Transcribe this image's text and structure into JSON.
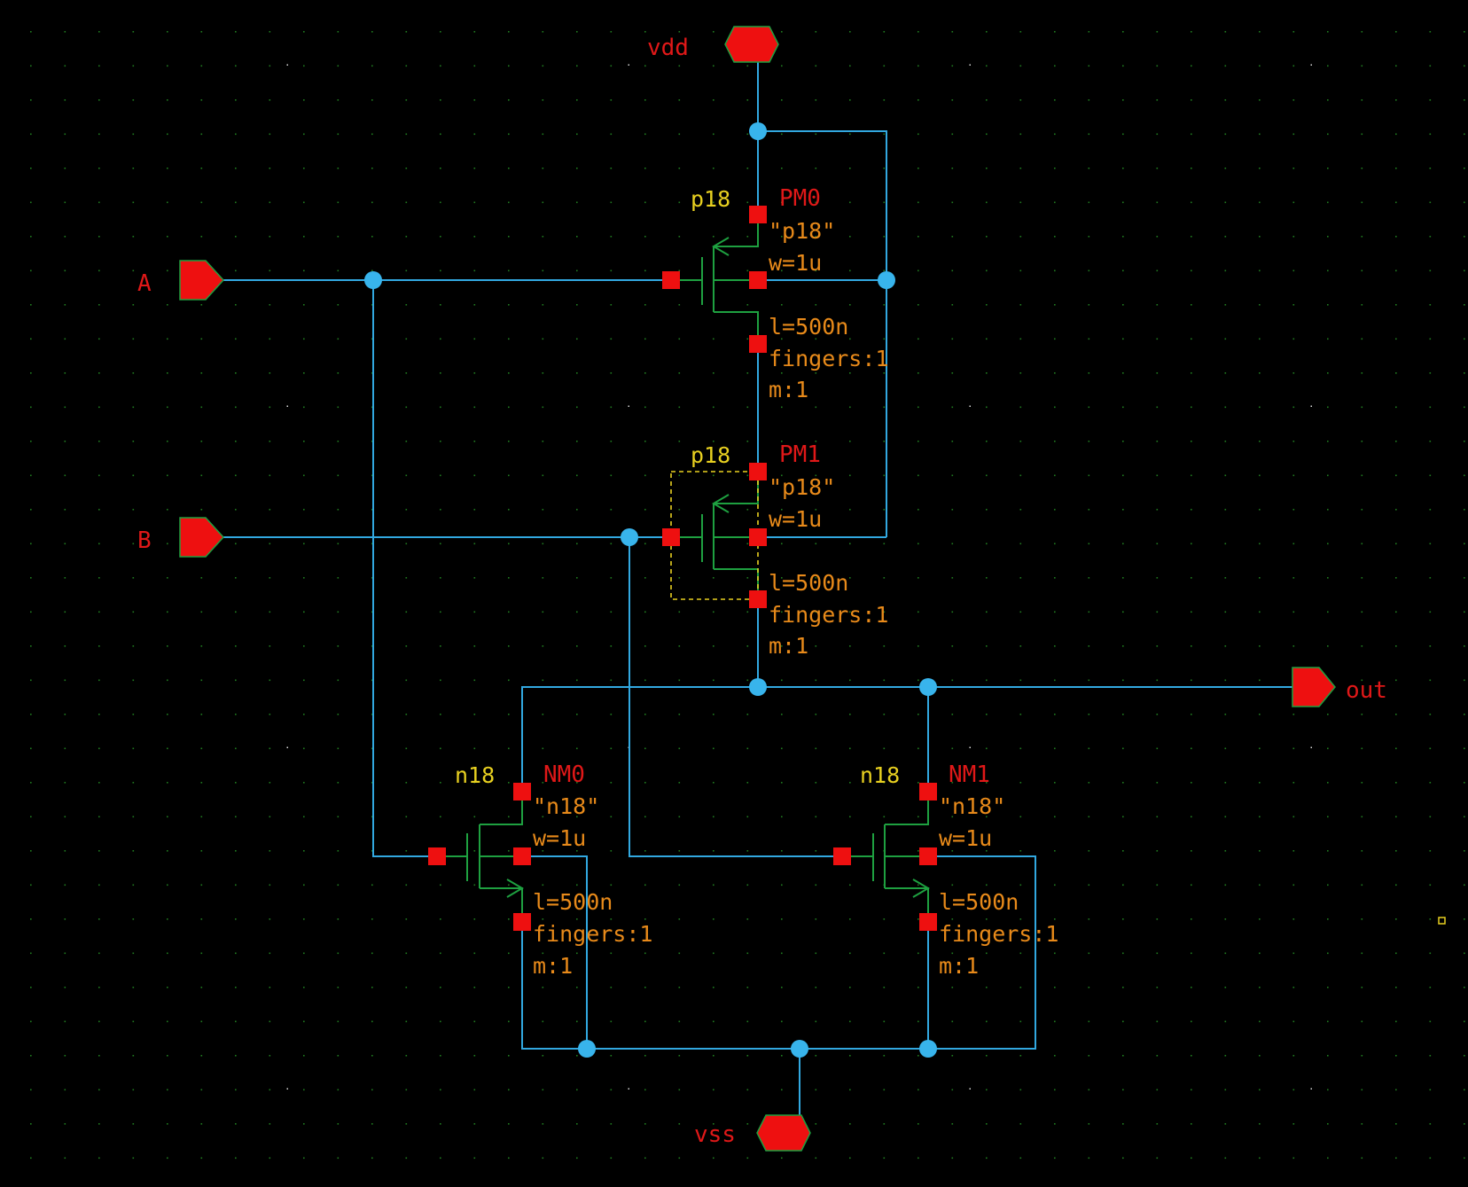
{
  "schematic": {
    "type": "2-input NOR gate",
    "colors": {
      "background": "#000000",
      "wire": "#32a8e0",
      "device": "#1ea040",
      "pin": "#ee1010",
      "pin_label": "#e01818",
      "model_label": "#e8d020",
      "property_label": "#e88a1a",
      "grid_dot": "#1f7a1f",
      "selection": "#e8d020"
    },
    "pins": {
      "vdd": "vdd",
      "vss": "vss",
      "a": "A",
      "b": "B",
      "out": "out"
    },
    "devices": {
      "pm0": {
        "model": "p18",
        "name": "PM0",
        "cell": "\"p18\"",
        "w": "w=1u",
        "l": "l=500n",
        "fingers": "fingers:1",
        "m": "m:1"
      },
      "pm1": {
        "model": "p18",
        "name": "PM1",
        "cell": "\"p18\"",
        "w": "w=1u",
        "l": "l=500n",
        "fingers": "fingers:1",
        "m": "m:1"
      },
      "nm0": {
        "model": "n18",
        "name": "NM0",
        "cell": "\"n18\"",
        "w": "w=1u",
        "l": "l=500n",
        "fingers": "fingers:1",
        "m": "m:1"
      },
      "nm1": {
        "model": "n18",
        "name": "NM1",
        "cell": "\"n18\"",
        "w": "w=1u",
        "l": "l=500n",
        "fingers": "fingers:1",
        "m": "m:1"
      }
    }
  }
}
